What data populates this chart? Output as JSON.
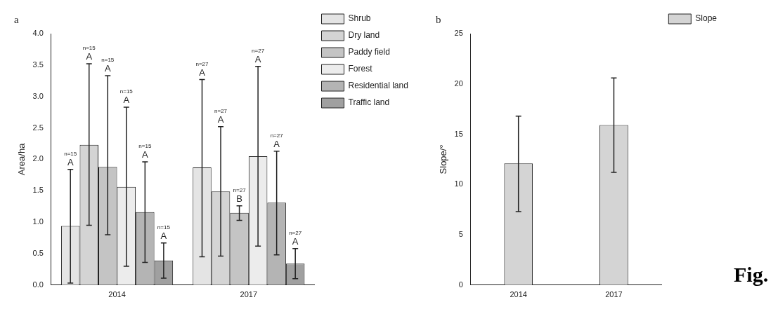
{
  "chart_data": [
    {
      "type": "bar",
      "title": "a",
      "ylabel": "Area/ha",
      "categories": [
        "2014",
        "2017"
      ],
      "series": [
        {
          "name": "Shrub",
          "color": "#e4e4e4",
          "values": [
            0.94,
            1.87
          ],
          "errors": [
            [
              0.03,
              1.84
            ],
            [
              0.45,
              3.27
            ]
          ]
        },
        {
          "name": "Dry land",
          "color": "#d4d4d4",
          "values": [
            2.23,
            1.49
          ],
          "errors": [
            [
              0.95,
              3.52
            ],
            [
              0.46,
              2.52
            ]
          ]
        },
        {
          "name": "Paddy field",
          "color": "#c4c4c4",
          "values": [
            1.88,
            1.15
          ],
          "errors": [
            [
              0.8,
              3.33
            ],
            [
              1.03,
              1.26
            ]
          ]
        },
        {
          "name": "Forest",
          "color": "#ececec",
          "values": [
            1.56,
            2.05
          ],
          "errors": [
            [
              0.3,
              2.83
            ],
            [
              0.62,
              3.48
            ]
          ]
        },
        {
          "name": "Residential land",
          "color": "#b4b4b4",
          "values": [
            1.16,
            1.31
          ],
          "errors": [
            [
              0.36,
              1.96
            ],
            [
              0.48,
              2.13
            ]
          ]
        },
        {
          "name": "Traffic land",
          "color": "#a0a0a0",
          "values": [
            0.39,
            0.34
          ],
          "errors": [
            [
              0.11,
              0.67
            ],
            [
              0.1,
              0.58
            ]
          ]
        }
      ],
      "ylim": [
        0,
        4
      ],
      "yticks": [
        {
          "value": 0,
          "label": "0.0"
        },
        {
          "value": 0.5,
          "label": "0.5"
        },
        {
          "value": 1,
          "label": "1.0"
        },
        {
          "value": 1.5,
          "label": "1.5"
        },
        {
          "value": 2,
          "label": "2.0"
        },
        {
          "value": 2.5,
          "label": "2.5"
        },
        {
          "value": 3,
          "label": "3.0"
        },
        {
          "value": 3.5,
          "label": "3.5"
        },
        {
          "value": 4,
          "label": "4.0"
        }
      ],
      "legend": "top right",
      "annotations": [
        "A",
        "n=15",
        "A",
        "n=15",
        "A",
        "n=15",
        "A",
        "n=15",
        "A",
        "n=15",
        "A",
        "n=15",
        "A",
        "n=27",
        "A",
        "n=27",
        "B",
        "n=27",
        "A",
        "n=27",
        "A",
        "n=27",
        "A",
        "n=27"
      ]
    },
    {
      "type": "bar",
      "title": "b",
      "ylabel": "Slope/°",
      "categories": [
        "2014",
        "2017"
      ],
      "series": [
        {
          "name": "Slope",
          "color": "#d4d4d4",
          "values": [
            12.1,
            15.9
          ],
          "errors": [
            [
              7.3,
              16.8
            ],
            [
              11.2,
              20.6
            ]
          ]
        }
      ],
      "ylim": [
        0,
        25
      ],
      "yticks": [
        0,
        5,
        10,
        15,
        20,
        25
      ],
      "legend": "top right",
      "annotations": [
        "Fig."
      ]
    }
  ]
}
